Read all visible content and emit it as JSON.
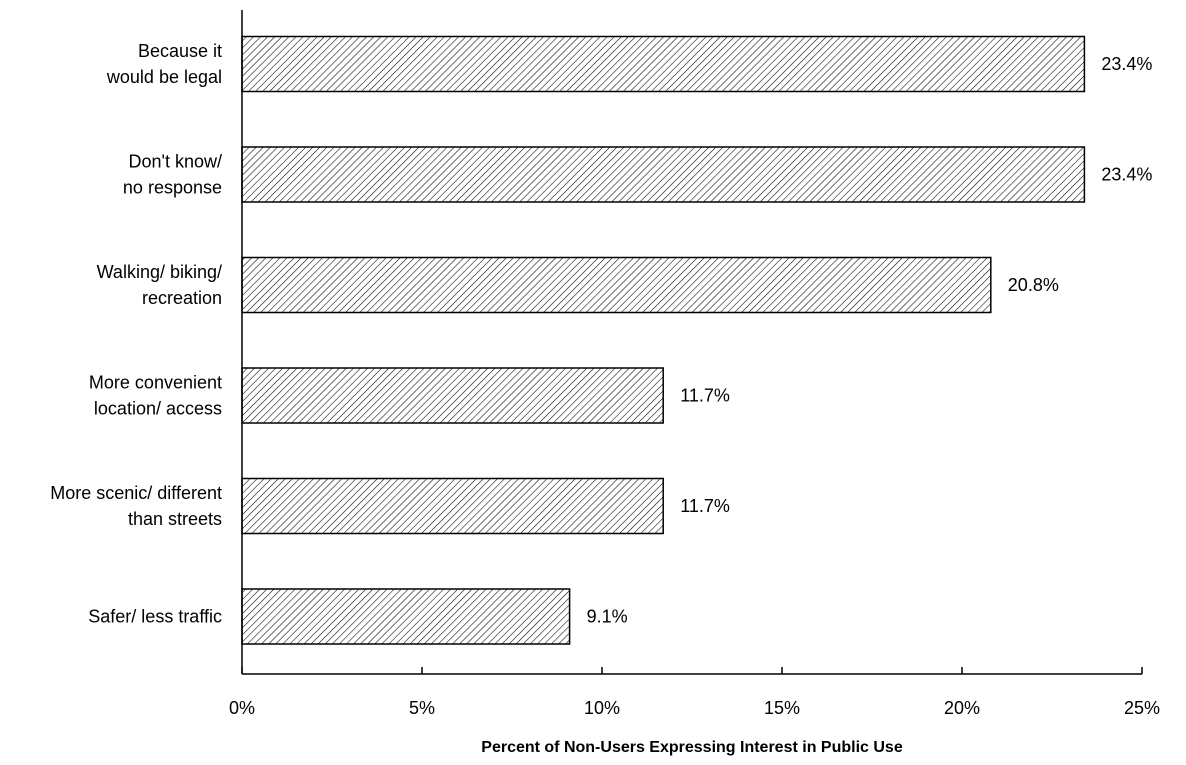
{
  "chart_data": {
    "type": "bar",
    "orientation": "horizontal",
    "title": "",
    "xlabel": "Percent of Non-Users Expressing Interest in Public Use",
    "ylabel": "",
    "xlim": [
      0,
      25
    ],
    "ticks": [
      0,
      5,
      10,
      15,
      20,
      25
    ],
    "tick_labels": [
      "0%",
      "5%",
      "10%",
      "15%",
      "20%",
      "25%"
    ],
    "grid": false,
    "legend": "none",
    "bar_fill": "hatched",
    "bar_color": "#000000",
    "categories": [
      [
        "Because it",
        "would be legal"
      ],
      [
        "Don't know/",
        "no response"
      ],
      [
        "Walking/ biking/",
        "recreation"
      ],
      [
        "More convenient",
        "location/ access"
      ],
      [
        "More scenic/ different",
        "than streets"
      ],
      [
        "Safer/ less traffic"
      ]
    ],
    "values": [
      23.4,
      23.4,
      20.8,
      11.7,
      11.7,
      9.1
    ],
    "value_labels": [
      "23.4%",
      "23.4%",
      "20.8%",
      "11.7%",
      "11.7%",
      "9.1%"
    ]
  }
}
